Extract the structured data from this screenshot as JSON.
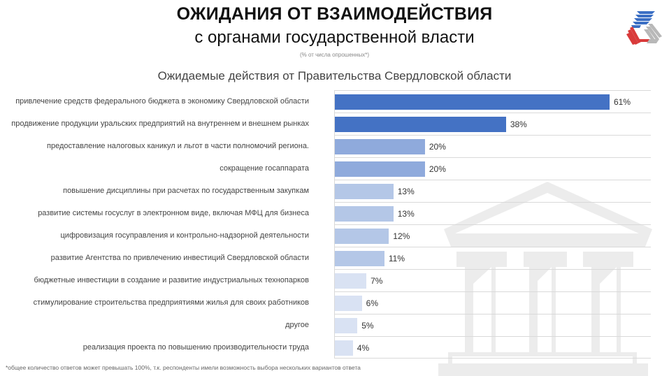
{
  "header": {
    "title": "ОЖИДАНИЯ ОТ ВЗАИМОДЕЙСТВИЯ",
    "subtitle": "с органами государственной власти",
    "note": "(% от числа опрошенных*)"
  },
  "logo": {
    "icon": "triangle-stripes-logo-icon",
    "colors": [
      "#3b6fc4",
      "#d93a3a",
      "#b8b8b8"
    ]
  },
  "watermark": {
    "icon": "government-building-icon",
    "color": "#ececec"
  },
  "footnote": "*общее количество ответов  может превышать 100%, т.к. респонденты имели возможность выбора нескольких вариантов ответа",
  "chart_data": {
    "type": "bar",
    "orientation": "horizontal",
    "title": "Ожидаемые действия от Правительства Свердловской области",
    "xlabel": "",
    "ylabel": "",
    "xlim": [
      0,
      70
    ],
    "grid": true,
    "legend": null,
    "categories": [
      "привлечение средств федерального бюджета в экономику Свердловской области",
      "продвижение продукции уральских предприятий на внутреннем и внешнем рынках",
      "предоставление налоговых каникул и льгот в части полномочий региона.",
      "сокращение госаппарата",
      "повышение дисциплины при расчетах по государственным закупкам",
      "развитие системы госуслуг в электронном виде, включая МФЦ для бизнеса",
      "цифровизация госуправления и контрольно-надзорной деятельности",
      "развитие Агентства по привлечению инвестиций Свердловской области",
      "бюджетные инвестиции в создание и развитие индустриальных технопарков",
      "стимулирование строительства предприятиями жилья для своих работников",
      "другое",
      "реализация проекта по повышению производительности труда"
    ],
    "values": [
      61,
      38,
      20,
      20,
      13,
      13,
      12,
      11,
      7,
      6,
      5,
      4
    ],
    "labels": [
      "61%",
      "38%",
      "20%",
      "20%",
      "13%",
      "13%",
      "12%",
      "11%",
      "7%",
      "6%",
      "5%",
      "4%"
    ],
    "bar_colors": [
      "#4472c4",
      "#4472c4",
      "#8faadc",
      "#8faadc",
      "#b4c7e7",
      "#b4c7e7",
      "#b4c7e7",
      "#b4c7e7",
      "#d9e2f3",
      "#d9e2f3",
      "#d9e2f3",
      "#d9e2f3"
    ]
  }
}
